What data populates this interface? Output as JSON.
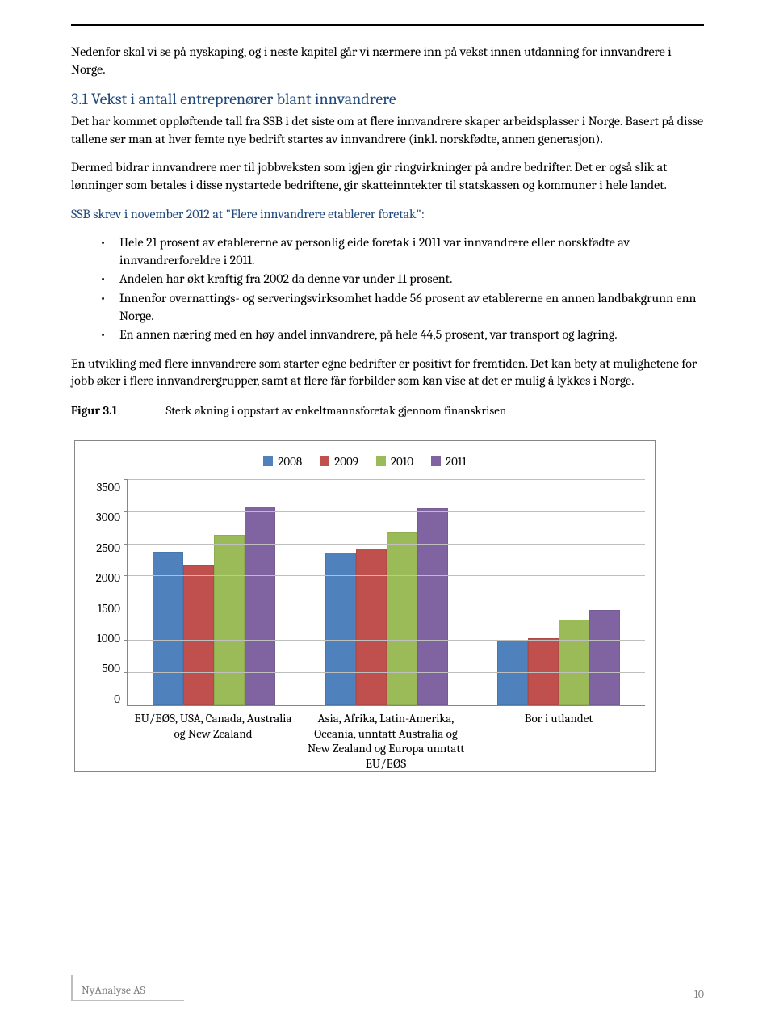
{
  "para1": "Nedenfor skal vi se på nyskaping, og i neste kapitel går vi nærmere inn på vekst innen utdanning for innvandrere i Norge.",
  "heading31": "3.1   Vekst i antall entreprenører blant innvandrere",
  "para2": "Det har kommet oppløftende tall fra SSB i det siste om at flere innvandrere skaper arbeidsplasser i Norge. Basert på disse tallene ser man at hver femte nye bedrift startes av innvandrere (inkl. norskfødte, annen generasjon).",
  "para3": "Dermed bidrar innvandrere mer til jobbveksten som igjen gir ringvirkninger på andre bedrifter. Det er også slik at lønninger som betales i disse nystartede bedriftene, gir skatteinntekter til statskassen og kommuner i hele landet.",
  "para4": "SSB skrev i november 2012 at \"Flere innvandrere etablerer foretak\":",
  "bullets": [
    "Hele 21 prosent av etablererne av personlig eide foretak i 2011 var innvandrere eller norskfødte av innvandrerforeldre i 2011.",
    "Andelen har økt kraftig fra 2002 da denne var under 11 prosent.",
    "Innenfor overnattings- og serveringsvirksomhet hadde 56 prosent av etablererne en annen landbakgrunn enn Norge.",
    "En annen næring med en høy andel innvandrere, på hele 44,5 prosent, var transport og lagring."
  ],
  "para5": "En utvikling med flere innvandrere som starter egne bedrifter er positivt for fremtiden. Det kan bety at mulighetene for jobb øker i flere innvandrergrupper, samt at flere får forbilder som kan vise at det er mulig å lykkes i Norge.",
  "figLabel": "Figur 3.1",
  "figCaption": "Sterk økning i oppstart av enkeltmannsforetak gjennom finanskrisen",
  "chart": {
    "type": "bar",
    "series": [
      {
        "name": "2008",
        "color": "#4f81bd"
      },
      {
        "name": "2009",
        "color": "#c0504d"
      },
      {
        "name": "2010",
        "color": "#9bbb59"
      },
      {
        "name": "2011",
        "color": "#8064a2"
      }
    ],
    "categories": [
      "EU/EØS, USA, Canada, Australia og New Zealand",
      "Asia, Afrika, Latin-Amerika, Oceania, unntatt Australia og New Zealand og Europa unntatt EU/EØS",
      "Bor i utlandet"
    ],
    "values": [
      [
        2380,
        2180,
        2650,
        3080
      ],
      [
        2370,
        2430,
        2680,
        3060
      ],
      [
        1000,
        1040,
        1330,
        1480
      ]
    ],
    "ymax": 3500,
    "ystep": 500,
    "yticks": [
      "3500",
      "3000",
      "2500",
      "2000",
      "1500",
      "1000",
      "500",
      "0"
    ],
    "grid_color": "#bfbfbf",
    "border_color": "#868686",
    "bg": "#ffffff"
  },
  "footer": {
    "org": "NyAnalyse AS",
    "page": "10"
  }
}
